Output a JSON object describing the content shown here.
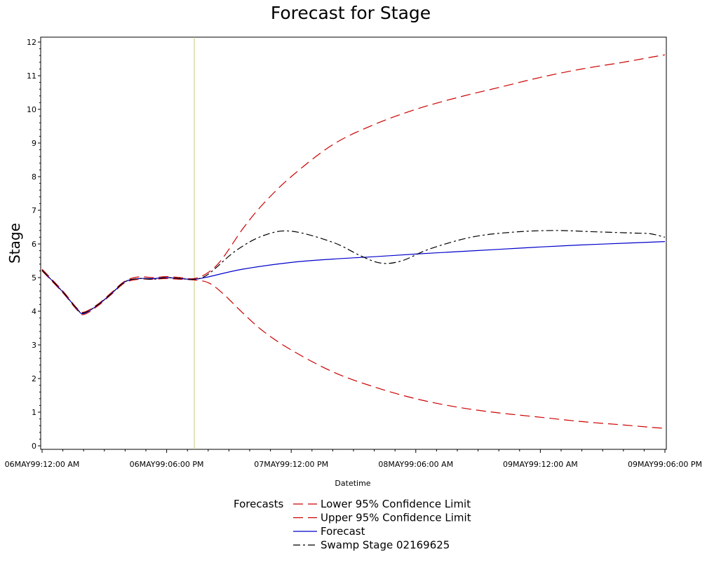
{
  "chart_data": {
    "type": "line",
    "title": "Forecast for Stage",
    "xlabel": "Datetime",
    "ylabel": "Stage",
    "ylim": [
      0,
      12
    ],
    "xlim": [
      "06MAY99:12:00 AM",
      "09MAY99:06:00 PM"
    ],
    "forecast_start": "06MAY99:10:00 PM",
    "x_ticks": [
      {
        "t": "06MAY99:12:00 AM",
        "label": "06MAY99:12:00 AM"
      },
      {
        "t": "06MAY99:06:00 PM",
        "label": "06MAY99:06:00 PM"
      },
      {
        "t": "07MAY99:12:00 PM",
        "label": "07MAY99:12:00 PM"
      },
      {
        "t": "08MAY99:06:00 AM",
        "label": "08MAY99:06:00 AM"
      },
      {
        "t": "09MAY99:12:00 AM",
        "label": "09MAY99:12:00 AM"
      },
      {
        "t": "09MAY99:06:00 PM",
        "label": "09MAY99:06:00 PM"
      }
    ],
    "y_ticks": [
      0,
      1,
      2,
      3,
      4,
      5,
      6,
      7,
      8,
      9,
      10,
      11,
      12
    ],
    "legend_title": "Forecasts",
    "series": [
      {
        "name": "Lower 95% Confidence Limit",
        "color": "#cc0000",
        "dash": "long",
        "points": [
          [
            "06MAY99:12:00 AM",
            5.2
          ],
          [
            "06MAY99:03:00 AM",
            4.55
          ],
          [
            "06MAY99:05:00 AM",
            4.05
          ],
          [
            "06MAY99:06:00 AM",
            3.9
          ],
          [
            "06MAY99:08:00 AM",
            4.15
          ],
          [
            "06MAY99:10:00 AM",
            4.5
          ],
          [
            "06MAY99:12:00 PM",
            4.85
          ],
          [
            "06MAY99:02:00 PM",
            4.95
          ],
          [
            "06MAY99:04:00 PM",
            4.95
          ],
          [
            "06MAY99:06:00 PM",
            4.97
          ],
          [
            "06MAY99:08:00 PM",
            4.95
          ],
          [
            "06MAY99:10:00 PM",
            4.93
          ],
          [
            "07MAY99:12:00 AM",
            4.85
          ],
          [
            "07MAY99:02:00 AM",
            4.55
          ],
          [
            "07MAY99:05:00 AM",
            3.95
          ],
          [
            "07MAY99:08:00 AM",
            3.4
          ],
          [
            "07MAY99:12:00 PM",
            2.85
          ],
          [
            "07MAY99:06:00 PM",
            2.2
          ],
          [
            "08MAY99:12:00 AM",
            1.75
          ],
          [
            "08MAY99:06:00 AM",
            1.4
          ],
          [
            "08MAY99:12:00 PM",
            1.15
          ],
          [
            "08MAY99:06:00 PM",
            0.98
          ],
          [
            "09MAY99:12:00 AM",
            0.85
          ],
          [
            "09MAY99:06:00 AM",
            0.72
          ],
          [
            "09MAY99:12:00 PM",
            0.62
          ],
          [
            "09MAY99:04:00 PM",
            0.55
          ],
          [
            "09MAY99:06:00 PM",
            0.52
          ]
        ]
      },
      {
        "name": "Upper 95% Confidence Limit",
        "color": "#cc0000",
        "dash": "long",
        "points": [
          [
            "06MAY99:12:00 AM",
            5.25
          ],
          [
            "06MAY99:03:00 AM",
            4.6
          ],
          [
            "06MAY99:05:00 AM",
            4.1
          ],
          [
            "06MAY99:06:00 AM",
            3.97
          ],
          [
            "06MAY99:08:00 AM",
            4.2
          ],
          [
            "06MAY99:10:00 AM",
            4.55
          ],
          [
            "06MAY99:12:00 PM",
            4.9
          ],
          [
            "06MAY99:02:00 PM",
            5.02
          ],
          [
            "06MAY99:04:00 PM",
            5.0
          ],
          [
            "06MAY99:06:00 PM",
            5.03
          ],
          [
            "06MAY99:08:00 PM",
            5.0
          ],
          [
            "06MAY99:10:00 PM",
            4.97
          ],
          [
            "07MAY99:12:00 AM",
            5.15
          ],
          [
            "07MAY99:02:00 AM",
            5.55
          ],
          [
            "07MAY99:05:00 AM",
            6.45
          ],
          [
            "07MAY99:08:00 AM",
            7.2
          ],
          [
            "07MAY99:12:00 PM",
            8.0
          ],
          [
            "07MAY99:06:00 PM",
            8.95
          ],
          [
            "08MAY99:12:00 AM",
            9.55
          ],
          [
            "08MAY99:06:00 AM",
            10.0
          ],
          [
            "08MAY99:12:00 PM",
            10.35
          ],
          [
            "08MAY99:06:00 PM",
            10.65
          ],
          [
            "09MAY99:12:00 AM",
            10.95
          ],
          [
            "09MAY99:06:00 AM",
            11.2
          ],
          [
            "09MAY99:12:00 PM",
            11.4
          ],
          [
            "09MAY99:04:00 PM",
            11.55
          ],
          [
            "09MAY99:06:00 PM",
            11.62
          ]
        ]
      },
      {
        "name": "Forecast",
        "color": "#0000cc",
        "dash": "solid",
        "points": [
          [
            "06MAY99:12:00 AM",
            5.22
          ],
          [
            "06MAY99:03:00 AM",
            4.57
          ],
          [
            "06MAY99:05:00 AM",
            4.08
          ],
          [
            "06MAY99:06:00 AM",
            3.93
          ],
          [
            "06MAY99:08:00 AM",
            4.18
          ],
          [
            "06MAY99:10:00 AM",
            4.52
          ],
          [
            "06MAY99:12:00 PM",
            4.88
          ],
          [
            "06MAY99:02:00 PM",
            4.97
          ],
          [
            "06MAY99:04:00 PM",
            4.97
          ],
          [
            "06MAY99:06:00 PM",
            5.0
          ],
          [
            "06MAY99:08:00 PM",
            4.97
          ],
          [
            "06MAY99:10:00 PM",
            4.95
          ],
          [
            "07MAY99:12:00 AM",
            5.02
          ],
          [
            "07MAY99:05:00 AM",
            5.25
          ],
          [
            "07MAY99:12:00 PM",
            5.45
          ],
          [
            "07MAY99:06:00 PM",
            5.55
          ],
          [
            "08MAY99:12:00 AM",
            5.62
          ],
          [
            "08MAY99:06:00 AM",
            5.7
          ],
          [
            "08MAY99:12:00 PM",
            5.77
          ],
          [
            "08MAY99:06:00 PM",
            5.84
          ],
          [
            "09MAY99:12:00 AM",
            5.91
          ],
          [
            "09MAY99:06:00 AM",
            5.97
          ],
          [
            "09MAY99:12:00 PM",
            6.02
          ],
          [
            "09MAY99:06:00 PM",
            6.07
          ]
        ]
      },
      {
        "name": "Swamp Stage 02169625",
        "color": "#000000",
        "dash": "dashdot",
        "points": [
          [
            "06MAY99:12:00 AM",
            5.22
          ],
          [
            "06MAY99:03:00 AM",
            4.57
          ],
          [
            "06MAY99:05:00 AM",
            4.08
          ],
          [
            "06MAY99:06:00 AM",
            3.95
          ],
          [
            "06MAY99:08:00 AM",
            4.18
          ],
          [
            "06MAY99:10:00 AM",
            4.52
          ],
          [
            "06MAY99:12:00 PM",
            4.88
          ],
          [
            "06MAY99:02:00 PM",
            4.97
          ],
          [
            "06MAY99:04:00 PM",
            4.95
          ],
          [
            "06MAY99:06:00 PM",
            5.0
          ],
          [
            "06MAY99:08:00 PM",
            4.97
          ],
          [
            "06MAY99:10:00 PM",
            4.95
          ],
          [
            "07MAY99:12:00 AM",
            5.1
          ],
          [
            "07MAY99:04:00 AM",
            5.8
          ],
          [
            "07MAY99:08:00 AM",
            6.25
          ],
          [
            "07MAY99:12:00 PM",
            6.38
          ],
          [
            "07MAY99:06:00 PM",
            6.05
          ],
          [
            "07MAY99:10:00 PM",
            5.65
          ],
          [
            "08MAY99:01:00 AM",
            5.43
          ],
          [
            "08MAY99:04:00 AM",
            5.5
          ],
          [
            "08MAY99:08:00 AM",
            5.85
          ],
          [
            "08MAY99:02:00 PM",
            6.2
          ],
          [
            "08MAY99:08:00 PM",
            6.35
          ],
          [
            "09MAY99:02:00 AM",
            6.4
          ],
          [
            "09MAY99:08:00 AM",
            6.36
          ],
          [
            "09MAY99:02:00 PM",
            6.32
          ],
          [
            "09MAY99:04:00 PM",
            6.3
          ],
          [
            "09MAY99:06:00 PM",
            6.2
          ]
        ]
      }
    ]
  }
}
